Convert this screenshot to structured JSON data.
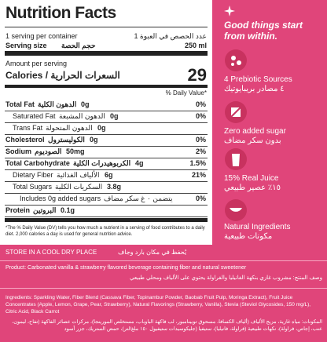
{
  "panel": {
    "title": "Nutrition Facts",
    "servings": {
      "en": "1 serving per container",
      "ar": "عدد الحصص في العبوة 1"
    },
    "serving_size": {
      "en": "Serving size",
      "ar": "حجم الحصة",
      "value": "250 ml"
    },
    "amount_per_serving": "Amount per serving",
    "calories": {
      "label": "Calories / السعرات الحرارية",
      "value": "29"
    },
    "daily_value_header": "% Daily Value*",
    "rows": [
      {
        "en": "Total Fat",
        "ar": "الدهون الكلية",
        "amount": "0g",
        "dv": "0%",
        "bold": true,
        "indent": 0
      },
      {
        "en": "Saturated Fat",
        "ar": "الدهون المشبعة",
        "amount": "0g",
        "dv": "0%",
        "bold": false,
        "indent": 1
      },
      {
        "en": "Trans Fat",
        "ar": "الدهون المتحولة",
        "amount": "0g",
        "bold": false,
        "indent": 1
      },
      {
        "en": "Cholesterol",
        "ar": "الكوليسترول",
        "amount": "0g",
        "dv": "0%",
        "bold": true,
        "indent": 0
      },
      {
        "en": "Sodium",
        "ar": "الصوديوم",
        "amount": "50mg",
        "dv": "2%",
        "bold": true,
        "indent": 0
      },
      {
        "en": "Total Carbohydrate",
        "ar": "الكربوهيدرات الكلية",
        "amount": "4g",
        "dv": "1.5%",
        "bold": true,
        "indent": 0
      },
      {
        "en": "Dietary Fiber",
        "ar": "الألياف الغذائية",
        "amount": "6g",
        "dv": "21%",
        "bold": false,
        "indent": 1
      },
      {
        "en": "Total Sugars",
        "ar": "السكريات الكلية",
        "amount": "3.8g",
        "bold": false,
        "indent": 1
      },
      {
        "en": "Includes 0g added sugars",
        "ar": "يتضمن ٠ غ سكر مضاف",
        "dv": "0%",
        "bold": false,
        "indent": 2
      },
      {
        "en": "Protein",
        "ar": "البروتين",
        "amount": "0.1g",
        "bold": true,
        "indent": 0
      }
    ],
    "footnote": "*The % Daily Value (DV) tells you how much a nutrient in a serving of food contributes to a daily diet. 2,000 calories a day is used for general nutrition advice."
  },
  "storage": {
    "en": "STORE IN A COOL DRY PLACE",
    "ar": "يُحفظ في مكان بارد وجاف"
  },
  "product": {
    "en": "Product: Carbonated vanilla & strawberry flavored beverage containing fiber and natural sweetener",
    "ar": "وصف المنتج: مشروب غازي بنكهة الفانيليا والفراولة يحتوي على الألياف ومحلي طبيعي"
  },
  "ingredients": {
    "en": "Ingredients: Sparkling Water, Fiber Blend (Cassava Fiber, Topinambur Powder, Baobab Fruit Pulp, Moringa Extract), Fruit Juice Concentrates (Apple, Lemon, Grape, Pear, Strawberry), Natural Flavorings (Strawberry, Vanilla), Stevia (Steviol Glycosides, 150 mg/L), Citric Acid, Black Carrot",
    "ar": "المكونات: مياه غازية، مزيج الألياف (ألياف الكسافا، مسحوق توبينامبور، لب فاكهة الباوباب، مستخلص المورينجا)، مركزات عصائر الفاكهة (تفاح، ليمون، عنب، إجاص، فراولة)، نكهات طبيعية (فراولة، فانيليا)، ستيفيا (جليكوسيدات ستيفيول ١٥٠ ملغ/لتر)، حمض الستريك، جزر أسود"
  },
  "tagline": "Good things start from within.",
  "features": [
    {
      "en": "4 Prebiotic Sources",
      "ar": "٤ مصادر بريبايوتيك"
    },
    {
      "en": "Zero added sugar",
      "ar": "بدون سكر مضاف"
    },
    {
      "en": "15% Real Juice",
      "ar": "١٥٪ عصير طبيعي"
    },
    {
      "en": "Natural Ingredients",
      "ar": "مكونات طبيعية"
    }
  ]
}
